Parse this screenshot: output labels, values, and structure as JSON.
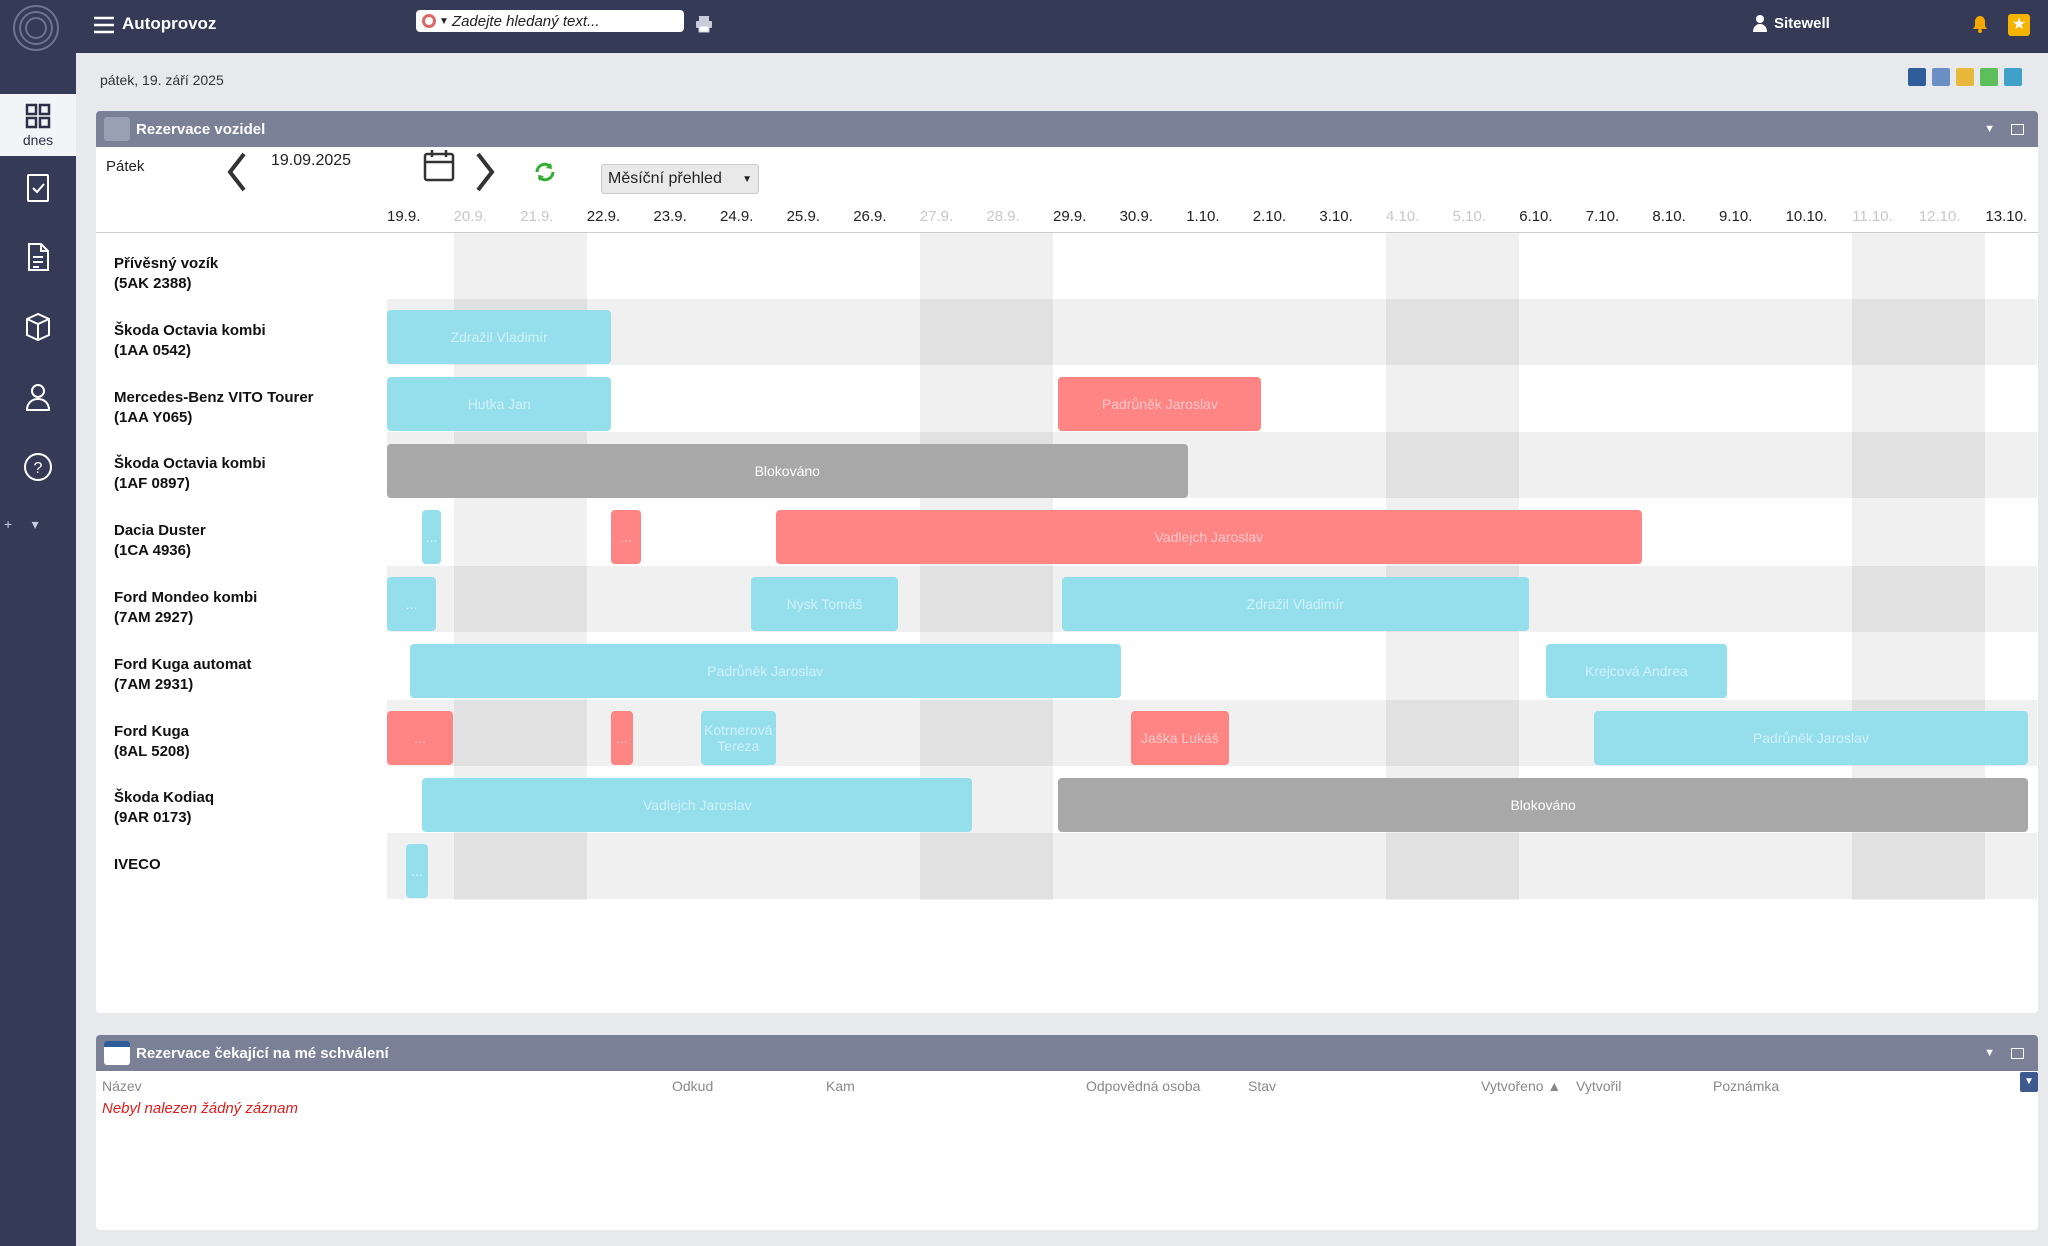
{
  "app": {
    "title": "Autoprovoz",
    "search_placeholder": "Zadejte hledaný text...",
    "user": "Sitewell"
  },
  "sidebar": {
    "active_label": "dnes"
  },
  "date_line": "pátek, 19. září 2025",
  "panel1": {
    "title": "Rezervace vozidel",
    "day_name": "Pátek",
    "date": "19.09.2025",
    "view_select": "Měsíční přehled",
    "dates": [
      {
        "l": "19.9.",
        "we": false
      },
      {
        "l": "20.9.",
        "we": true
      },
      {
        "l": "21.9.",
        "we": true
      },
      {
        "l": "22.9.",
        "we": false
      },
      {
        "l": "23.9.",
        "we": false
      },
      {
        "l": "24.9.",
        "we": false
      },
      {
        "l": "25.9.",
        "we": false
      },
      {
        "l": "26.9.",
        "we": false
      },
      {
        "l": "27.9.",
        "we": true
      },
      {
        "l": "28.9.",
        "we": true
      },
      {
        "l": "29.9.",
        "we": false
      },
      {
        "l": "30.9.",
        "we": false
      },
      {
        "l": "1.10.",
        "we": false
      },
      {
        "l": "2.10.",
        "we": false
      },
      {
        "l": "3.10.",
        "we": false
      },
      {
        "l": "4.10.",
        "we": true
      },
      {
        "l": "5.10.",
        "we": true
      },
      {
        "l": "6.10.",
        "we": false
      },
      {
        "l": "7.10.",
        "we": false
      },
      {
        "l": "8.10.",
        "we": false
      },
      {
        "l": "9.10.",
        "we": false
      },
      {
        "l": "10.10.",
        "we": false
      },
      {
        "l": "11.10.",
        "we": true
      },
      {
        "l": "12.10.",
        "we": true
      },
      {
        "l": "13.10.",
        "we": false
      }
    ],
    "vehicles": [
      {
        "name": "Přívěsný vozík",
        "plate": "(5AK 2388)"
      },
      {
        "name": "Škoda Octavia kombi",
        "plate": "(1AA 0542)"
      },
      {
        "name": "Mercedes-Benz VITO Tourer",
        "plate": "(1AA Y065)"
      },
      {
        "name": "Škoda Octavia kombi",
        "plate": "(1AF 0897)"
      },
      {
        "name": "Dacia Duster",
        "plate": "(1CA 4936)"
      },
      {
        "name": "Ford Mondeo kombi",
        "plate": "(7AM 2927)"
      },
      {
        "name": "Ford Kuga automat",
        "plate": "(7AM 2931)"
      },
      {
        "name": "Ford Kuga",
        "plate": "(8AL 5208)"
      },
      {
        "name": "Škoda Kodiaq",
        "plate": "(9AR 0173)"
      },
      {
        "name": "IVECO",
        "plate": ""
      }
    ],
    "bars": [
      {
        "row": 1,
        "start": 0,
        "span": 3.37,
        "color": "blue",
        "text": "Zdražil Vladimír"
      },
      {
        "row": 2,
        "start": 0,
        "span": 3.37,
        "color": "blue",
        "text": "Hutka Jan"
      },
      {
        "row": 2,
        "start": 10.08,
        "span": 3.05,
        "color": "red",
        "text": "Padrůněk Jaroslav"
      },
      {
        "row": 3,
        "start": 0,
        "span": 12.02,
        "color": "gray",
        "text": "Blokováno"
      },
      {
        "row": 4,
        "start": 0.53,
        "span": 0.28,
        "color": "blue",
        "text": "..."
      },
      {
        "row": 4,
        "start": 3.37,
        "span": 0.44,
        "color": "red",
        "text": "..."
      },
      {
        "row": 4,
        "start": 5.84,
        "span": 13.0,
        "color": "red",
        "text": "Vadlejch Jaroslav"
      },
      {
        "row": 5,
        "start": 0,
        "span": 0.74,
        "color": "blue",
        "text": "..."
      },
      {
        "row": 5,
        "start": 5.47,
        "span": 2.2,
        "color": "blue",
        "text": "Nysk Tomáš"
      },
      {
        "row": 5,
        "start": 10.13,
        "span": 7.02,
        "color": "blue",
        "text": "Zdražil Vladimír"
      },
      {
        "row": 6,
        "start": 0.34,
        "span": 10.68,
        "color": "blue",
        "text": "Padrůněk Jaroslav"
      },
      {
        "row": 6,
        "start": 17.4,
        "span": 2.72,
        "color": "blue",
        "text": "Krejcová Andrea"
      },
      {
        "row": 7,
        "start": 0,
        "span": 0.99,
        "color": "red",
        "text": "..."
      },
      {
        "row": 7,
        "start": 3.37,
        "span": 0.32,
        "color": "red",
        "text": "..."
      },
      {
        "row": 7,
        "start": 4.71,
        "span": 1.13,
        "color": "blue",
        "text": "Kotrnerová Tereza"
      },
      {
        "row": 7,
        "start": 11.17,
        "span": 1.47,
        "color": "red",
        "text": "Jaška Lukáš"
      },
      {
        "row": 7,
        "start": 18.12,
        "span": 6.52,
        "color": "blue",
        "text": "Padrůněk Jaroslav"
      },
      {
        "row": 8,
        "start": 0.53,
        "span": 8.26,
        "color": "blue",
        "text": "Vadlejch Jaroslav"
      },
      {
        "row": 8,
        "start": 10.08,
        "span": 14.56,
        "color": "gray",
        "text": "Blokováno"
      },
      {
        "row": 9,
        "start": 0.29,
        "span": 0.32,
        "color": "blue",
        "text": "..."
      }
    ]
  },
  "panel2": {
    "title": "Rezervace čekající na mé schválení",
    "columns": [
      "Název",
      "Odkud",
      "Kam",
      "Odpovědná osoba",
      "Stav",
      "Vytvořeno",
      "Vytvořil",
      "Poznámka"
    ],
    "empty_text": "Nebyl nalezen žádný záznam"
  }
}
